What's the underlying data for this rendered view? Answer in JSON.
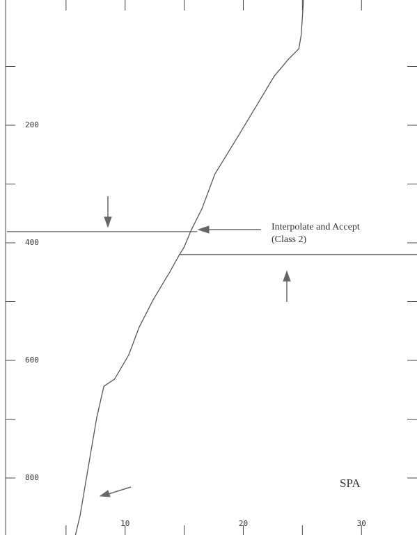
{
  "chart_data": {
    "type": "line",
    "annotations": [
      "Interpolate and Accept",
      "(Class 2)",
      "SPA"
    ],
    "x": [
      25.1,
      24.9,
      24.7,
      23.8,
      22.6,
      21.2,
      19.4,
      17.6,
      16.5,
      15.6,
      15.0,
      14.6,
      13.8,
      12.4,
      11.2,
      10.3,
      9.1,
      8.2,
      7.6,
      7.1,
      6.6,
      6.2,
      5.8
    ],
    "values": [
      -13,
      46,
      70,
      88,
      117,
      164,
      224,
      283,
      342,
      378,
      407,
      420,
      449,
      496,
      543,
      591,
      632,
      644,
      697,
      756,
      815,
      863,
      897
    ],
    "color": "#555555",
    "xlim": [
      0,
      34.7
    ],
    "ylim": [
      897,
      -13
    ],
    "xticks": [
      10,
      20,
      30
    ],
    "xminor_ticks": [
      5,
      15,
      25
    ],
    "yticks": [
      200,
      400,
      600,
      800
    ],
    "yminor_ticks": [
      100,
      300,
      500,
      700
    ],
    "reference_lines": [
      {
        "y": 381,
        "x": [
          0,
          16.1
        ]
      },
      {
        "y": 420,
        "x": [
          14.6,
          34.7
        ]
      }
    ]
  }
}
